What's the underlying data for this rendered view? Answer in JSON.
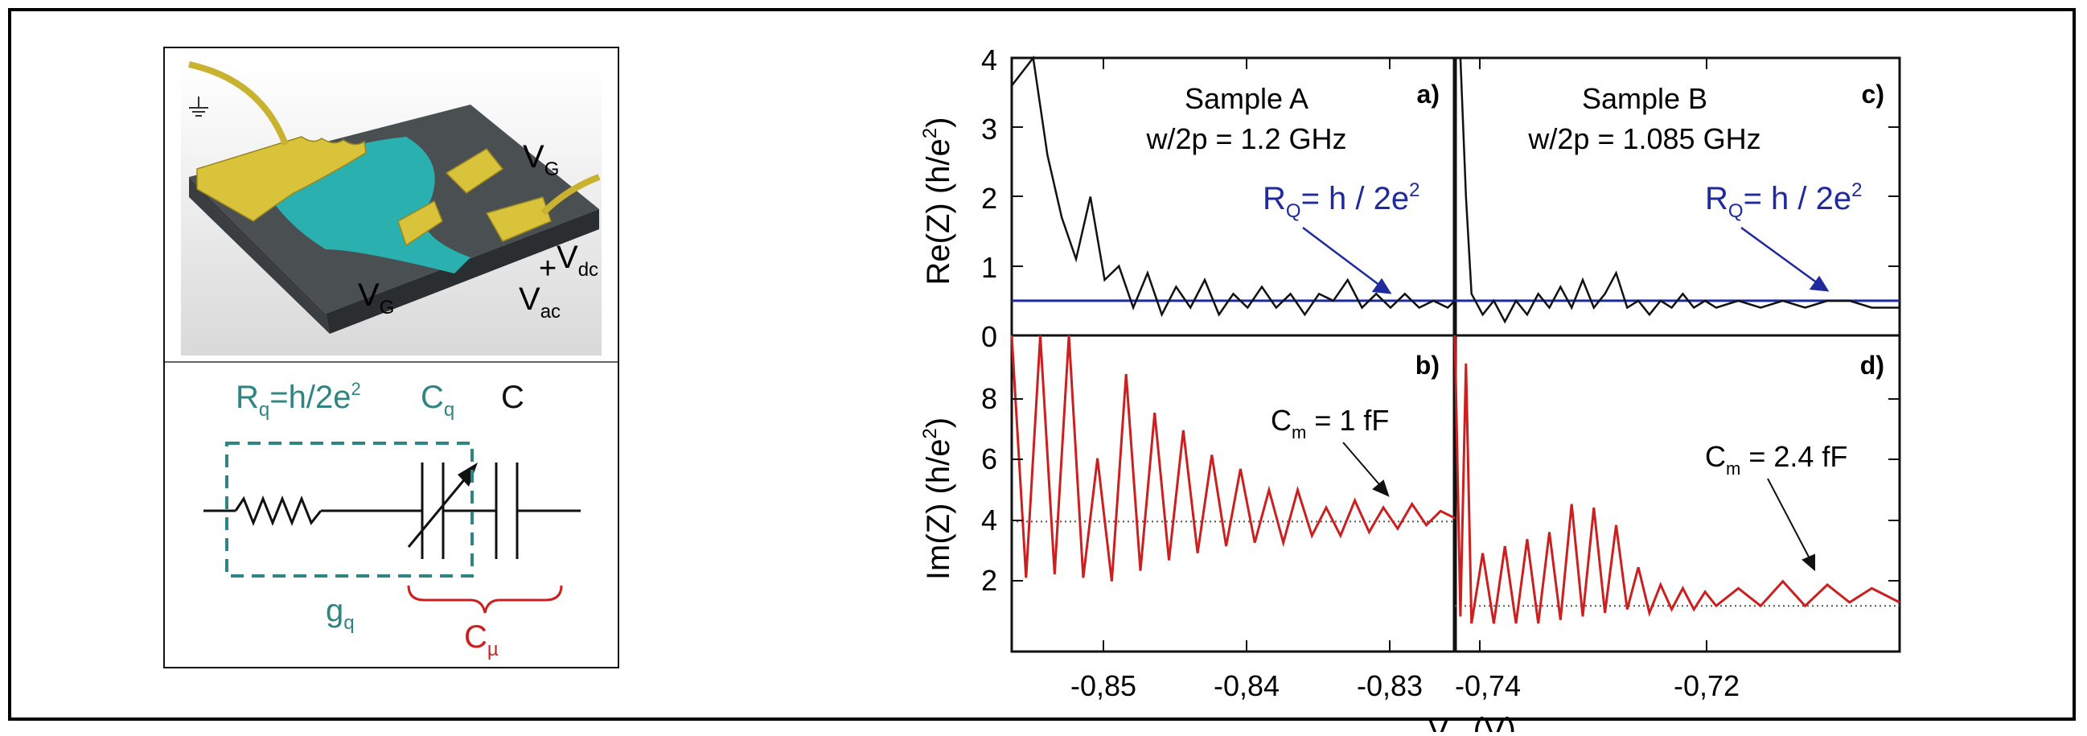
{
  "device": {
    "vg_top": "V",
    "vg_top_sub": "G",
    "vg_left": "V",
    "vg_left_sub": "G",
    "vdc": "V",
    "vdc_sub": "dc",
    "vac": "V",
    "vac_sub": "ac",
    "plus": "+"
  },
  "circuit": {
    "rq_label": "R",
    "rq_sub": "q",
    "rq_eq": "=h/2e",
    "rq_sup": "2",
    "cq_label": "C",
    "cq_sub": "q",
    "c_label": "C",
    "gq_label": "g",
    "gq_sub": "q",
    "cmu_label": "C",
    "cmu_sub": "µ"
  },
  "colors": {
    "teal": "#2f8582",
    "red_curve": "#cc1f1f",
    "blue_line": "#1f2a9c",
    "gold": "#d8c33a",
    "cyan": "#2bb0b0"
  },
  "chart_data": [
    {
      "panel": "a)",
      "type": "line",
      "title": "Sample A",
      "subtitle": "w/2p = 1.2 GHz",
      "ylabel": "Re(Z) (h/e",
      "ylabel_sup": "2",
      "ylabel_tail": ")",
      "ylim": [
        0,
        4
      ],
      "yticks": [
        "0",
        "1",
        "2",
        "3",
        "4"
      ],
      "xlim": [
        -0.8555,
        -0.8245
      ],
      "xticks": [
        "-0,85",
        "-0,84",
        "-0,83"
      ],
      "reference_label": "R",
      "reference_sub": "Q",
      "reference_eq": "= h / 2e",
      "reference_sup": "2",
      "reference_value": 0.5,
      "x": [
        -0.8555,
        -0.854,
        -0.853,
        -0.852,
        -0.851,
        -0.85,
        -0.849,
        -0.848,
        -0.847,
        -0.846,
        -0.845,
        -0.844,
        -0.843,
        -0.842,
        -0.841,
        -0.84,
        -0.839,
        -0.838,
        -0.837,
        -0.836,
        -0.835,
        -0.834,
        -0.833,
        -0.832,
        -0.831,
        -0.83,
        -0.829,
        -0.828,
        -0.827,
        -0.826,
        -0.825,
        -0.8245
      ],
      "y": [
        3.6,
        4.0,
        2.6,
        1.7,
        1.1,
        2.0,
        0.8,
        1.0,
        0.4,
        0.9,
        0.3,
        0.7,
        0.4,
        0.8,
        0.3,
        0.6,
        0.4,
        0.7,
        0.4,
        0.6,
        0.3,
        0.6,
        0.5,
        0.8,
        0.4,
        0.6,
        0.4,
        0.6,
        0.4,
        0.5,
        0.4,
        0.5
      ]
    },
    {
      "panel": "c)",
      "type": "line",
      "title": "Sample B",
      "subtitle": "w/2p = 1.085 GHz",
      "ylim": [
        0,
        4
      ],
      "xlim": [
        -0.7455,
        -0.7055
      ],
      "xticks": [
        "-0,74",
        "-0,72"
      ],
      "reference_label": "R",
      "reference_sub": "Q",
      "reference_eq": "= h / 2e",
      "reference_sup": "2",
      "reference_value": 0.5,
      "x": [
        -0.7455,
        -0.745,
        -0.7445,
        -0.744,
        -0.743,
        -0.742,
        -0.741,
        -0.74,
        -0.739,
        -0.738,
        -0.737,
        -0.736,
        -0.735,
        -0.734,
        -0.733,
        -0.732,
        -0.731,
        -0.73,
        -0.729,
        -0.728,
        -0.727,
        -0.726,
        -0.725,
        -0.724,
        -0.723,
        -0.722,
        -0.72,
        -0.718,
        -0.716,
        -0.714,
        -0.712,
        -0.71,
        -0.708,
        -0.7055
      ],
      "y": [
        4.0,
        4.0,
        2.0,
        0.6,
        0.3,
        0.5,
        0.2,
        0.5,
        0.3,
        0.6,
        0.4,
        0.7,
        0.4,
        0.8,
        0.4,
        0.6,
        0.9,
        0.4,
        0.5,
        0.3,
        0.5,
        0.4,
        0.6,
        0.4,
        0.5,
        0.4,
        0.5,
        0.4,
        0.5,
        0.4,
        0.5,
        0.5,
        0.4,
        0.4
      ]
    },
    {
      "panel": "b)",
      "type": "line",
      "ylabel": "Im(Z) (h/e",
      "ylabel_sup": "2",
      "ylabel_tail": ")",
      "ylim": [
        1,
        10
      ],
      "yticks": [
        "2",
        "4",
        "6",
        "8"
      ],
      "xlim": [
        -0.8555,
        -0.8245
      ],
      "xticks": [
        "-0,85",
        "-0,84",
        "-0,83"
      ],
      "annotation": "C",
      "annotation_sub": "m",
      "annotation_tail": " = 1 fF",
      "baseline": 4.7,
      "x": [
        -0.8555,
        -0.8545,
        -0.8535,
        -0.8525,
        -0.8515,
        -0.8505,
        -0.8495,
        -0.8485,
        -0.8475,
        -0.8465,
        -0.8455,
        -0.8445,
        -0.8435,
        -0.8425,
        -0.8415,
        -0.8405,
        -0.8395,
        -0.8385,
        -0.8375,
        -0.8365,
        -0.8355,
        -0.8345,
        -0.8335,
        -0.8325,
        -0.8315,
        -0.8305,
        -0.8295,
        -0.8285,
        -0.8275,
        -0.8265,
        -0.8255,
        -0.8245
      ],
      "y": [
        10,
        3.1,
        10,
        3.2,
        10,
        3.1,
        6.5,
        3.0,
        8.9,
        3.3,
        7.8,
        3.6,
        7.3,
        3.8,
        6.6,
        4.0,
        6.2,
        4.1,
        5.6,
        4.1,
        5.6,
        4.3,
        5.1,
        4.3,
        5.3,
        4.4,
        5.1,
        4.5,
        5.2,
        4.6,
        5.0,
        4.8
      ]
    },
    {
      "panel": "d)",
      "type": "line",
      "ylim": [
        1,
        10
      ],
      "xlim": [
        -0.7455,
        -0.7055
      ],
      "xticks": [
        "-0,74",
        "-0,72"
      ],
      "xlabel": "V",
      "xlabel_sub": "G",
      "xlabel_tail": " (V)",
      "annotation": "C",
      "annotation_sub": "m",
      "annotation_tail": " = 2.4 fF",
      "baseline": 2.3,
      "x": [
        -0.7455,
        -0.745,
        -0.7445,
        -0.744,
        -0.743,
        -0.742,
        -0.741,
        -0.74,
        -0.739,
        -0.738,
        -0.737,
        -0.736,
        -0.735,
        -0.734,
        -0.733,
        -0.732,
        -0.731,
        -0.73,
        -0.729,
        -0.728,
        -0.727,
        -0.726,
        -0.725,
        -0.724,
        -0.723,
        -0.722,
        -0.72,
        -0.718,
        -0.716,
        -0.714,
        -0.712,
        -0.71,
        -0.708,
        -0.7055
      ],
      "y": [
        10,
        2.0,
        9.2,
        1.8,
        3.8,
        1.8,
        4.0,
        1.8,
        4.2,
        1.8,
        4.4,
        1.9,
        5.2,
        2.0,
        5.1,
        2.1,
        4.6,
        2.2,
        3.4,
        2.1,
        2.9,
        2.2,
        2.8,
        2.2,
        2.7,
        2.3,
        2.8,
        2.3,
        3.0,
        2.3,
        2.9,
        2.4,
        2.8,
        2.4
      ]
    }
  ]
}
